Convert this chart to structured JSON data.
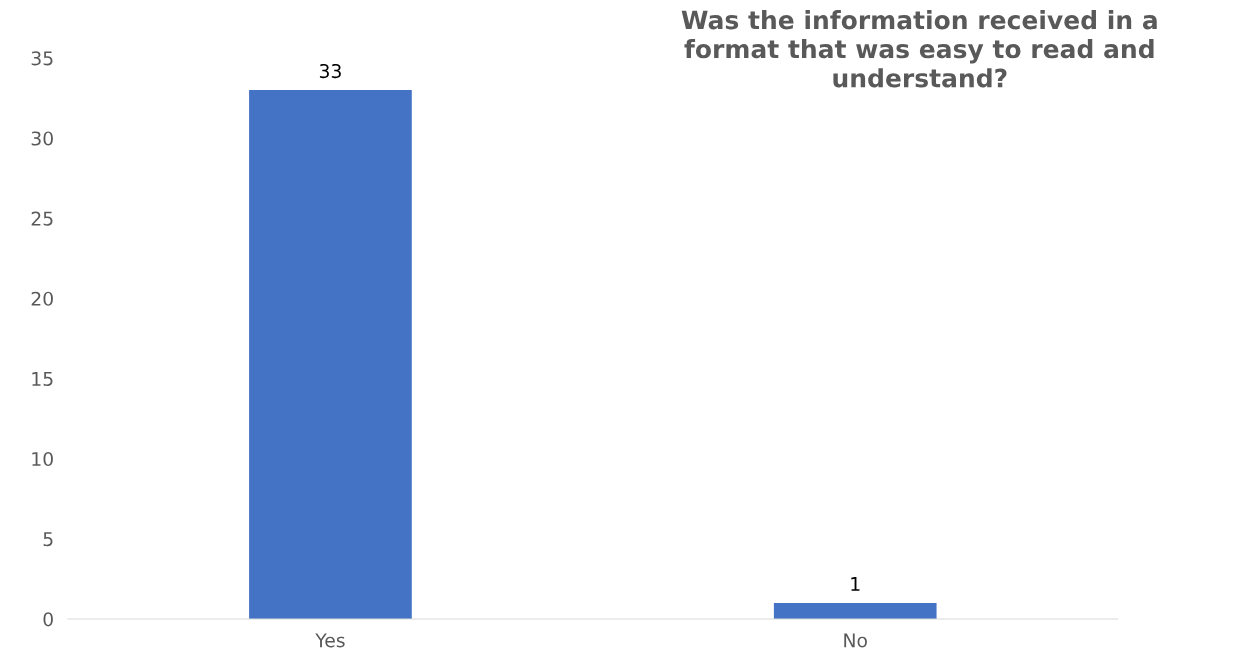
{
  "chart_data": {
    "type": "bar",
    "title": "Was the information received in a\nformat that was easy to read and\nunderstand?",
    "categories": [
      "Yes",
      "No"
    ],
    "values": [
      33,
      1
    ],
    "color": "#4472c4",
    "ylim": [
      0,
      35
    ],
    "yticks": [
      0,
      5,
      10,
      15,
      20,
      25,
      30,
      35
    ],
    "grid": false,
    "data_labels": true,
    "legend": false
  }
}
